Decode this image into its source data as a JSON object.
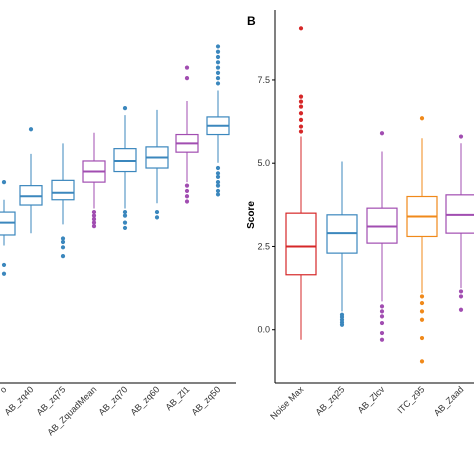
{
  "chart_data": [
    {
      "panel": "A",
      "panel_label_visible": false,
      "type": "box",
      "title": "",
      "xlabel": "",
      "ylabel": "",
      "ylim": [
        -1.0,
        9.3
      ],
      "y_ticks": [],
      "grid": false,
      "categories": [
        "",
        "AB_zq40",
        "AB_zq75",
        "AB_ZquadMean",
        "AB_zq70",
        "AB_zq60",
        "AB_Zl1",
        "AB_zq50"
      ],
      "category_label_text": [
        "o",
        "AB_zq40",
        "AB_zq75",
        "AB_ZquadMean",
        "AB_zq70",
        "AB_zq60",
        "AB_Zl1",
        "AB_zq50"
      ],
      "colors": [
        "#3b87bd",
        "#3b87bd",
        "#3b87bd",
        "#a14db1",
        "#3b87bd",
        "#3b87bd",
        "#a14db1",
        "#3b87bd"
      ],
      "boxes": [
        {
          "q1": 3.2,
          "median": 3.55,
          "q3": 3.85,
          "whisker_low": 2.9,
          "whisker_high": 4.2,
          "outliers": [
            4.7,
            2.35,
            2.1
          ]
        },
        {
          "q1": 4.05,
          "median": 4.3,
          "q3": 4.6,
          "whisker_low": 3.25,
          "whisker_high": 5.5,
          "outliers": [
            6.2
          ]
        },
        {
          "q1": 4.2,
          "median": 4.4,
          "q3": 4.75,
          "whisker_low": 3.5,
          "whisker_high": 5.8,
          "outliers": [
            3.1,
            3.0,
            2.85,
            2.6
          ]
        },
        {
          "q1": 4.7,
          "median": 5.0,
          "q3": 5.3,
          "whisker_low": 3.95,
          "whisker_high": 6.1,
          "outliers": [
            3.85,
            3.75,
            3.65,
            3.55,
            3.45
          ]
        },
        {
          "q1": 5.0,
          "median": 5.3,
          "q3": 5.65,
          "whisker_low": 3.95,
          "whisker_high": 6.6,
          "outliers": [
            3.85,
            3.75,
            3.55,
            3.4,
            6.8
          ]
        },
        {
          "q1": 5.1,
          "median": 5.4,
          "q3": 5.7,
          "whisker_low": 4.1,
          "whisker_high": 6.75,
          "outliers": [
            3.85,
            3.7
          ]
        },
        {
          "q1": 5.55,
          "median": 5.8,
          "q3": 6.05,
          "whisker_low": 4.7,
          "whisker_high": 7.0,
          "outliers": [
            4.6,
            4.45,
            4.3,
            4.15,
            7.65,
            7.95
          ]
        },
        {
          "q1": 6.05,
          "median": 6.3,
          "q3": 6.55,
          "whisker_low": 5.25,
          "whisker_high": 7.3,
          "outliers": [
            5.1,
            4.95,
            4.85,
            4.7,
            4.6,
            4.45,
            4.35,
            7.5,
            7.65,
            7.8,
            7.95,
            8.1,
            8.25,
            8.4,
            8.55
          ]
        }
      ]
    },
    {
      "panel": "B",
      "panel_label": "B",
      "type": "box",
      "title": "",
      "xlabel": "",
      "ylabel": "Score",
      "ylim": [
        -1.6,
        9.3
      ],
      "y_ticks": [
        "0.0",
        "2.5",
        "5.0",
        "7.5"
      ],
      "y_tick_values": [
        0.0,
        2.5,
        5.0,
        7.5
      ],
      "grid": false,
      "categories": [
        "Noise Max",
        "AB_zq25",
        "AB_Zlcv",
        "ITC_z95",
        "AB_Zaad"
      ],
      "colors": [
        "#d62728",
        "#3b87bd",
        "#a14db1",
        "#f0891a",
        "#a14db1"
      ],
      "boxes": [
        {
          "q1": 1.65,
          "median": 2.5,
          "q3": 3.5,
          "whisker_low": -0.3,
          "whisker_high": 5.8,
          "outliers": [
            5.95,
            6.1,
            6.3,
            6.5,
            6.7,
            6.85,
            7.0,
            9.05
          ]
        },
        {
          "q1": 2.3,
          "median": 2.9,
          "q3": 3.45,
          "whisker_low": 0.55,
          "whisker_high": 5.05,
          "outliers": [
            0.45,
            0.38,
            0.3,
            0.22,
            0.15
          ]
        },
        {
          "q1": 2.6,
          "median": 3.1,
          "q3": 3.65,
          "whisker_low": 0.85,
          "whisker_high": 5.35,
          "outliers": [
            0.7,
            0.55,
            0.4,
            0.2,
            -0.1,
            -0.3,
            5.9
          ]
        },
        {
          "q1": 2.8,
          "median": 3.4,
          "q3": 4.0,
          "whisker_low": 1.1,
          "whisker_high": 5.75,
          "outliers": [
            1.0,
            0.8,
            0.55,
            0.3,
            -0.25,
            -0.95,
            6.35
          ]
        },
        {
          "q1": 2.9,
          "median": 3.45,
          "q3": 4.05,
          "whisker_low": 1.25,
          "whisker_high": 5.6,
          "outliers": [
            1.15,
            1.0,
            0.6,
            5.8
          ]
        }
      ]
    }
  ]
}
